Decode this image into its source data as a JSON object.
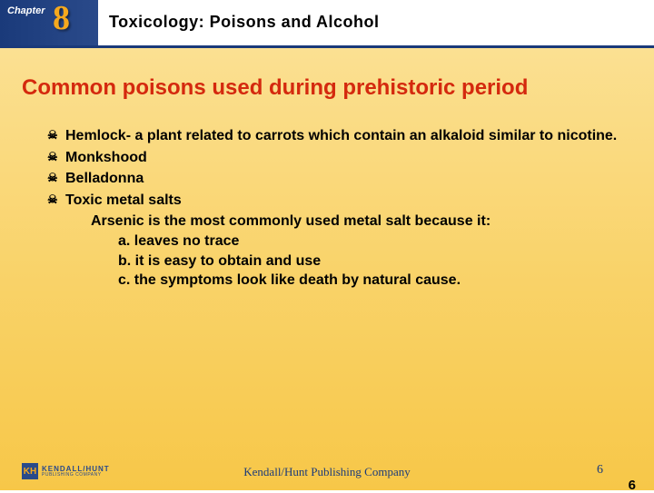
{
  "header": {
    "chapter_label": "Chapter",
    "chapter_number": "8",
    "title": "Toxicology: Poisons and Alcohol"
  },
  "slide": {
    "title": "Common poisons used during prehistoric period",
    "bullets": [
      {
        "text": "Hemlock- a plant related to carrots which contain an alkaloid similar to nicotine."
      },
      {
        "text": "Monkshood"
      },
      {
        "text": "Belladonna"
      },
      {
        "text": "Toxic metal salts"
      }
    ],
    "sub_line": "Arsenic is the most commonly used metal salt because it:",
    "sub_items": [
      "a. leaves no trace",
      "b. it is easy to obtain and use",
      "c. the symptoms look like death by natural cause."
    ]
  },
  "footer": {
    "center": "Kendall/Hunt Publishing Company",
    "page1": "6",
    "page2": "6",
    "logo_main": "KENDALL/HUNT",
    "logo_sub": "PUBLISHING COMPANY"
  },
  "colors": {
    "title_color": "#d4290e",
    "header_blue": "#1a3a7a",
    "chapter_orange": "#f5a91e",
    "bg_top": "#fbe092",
    "bg_bottom": "#f7c748"
  }
}
